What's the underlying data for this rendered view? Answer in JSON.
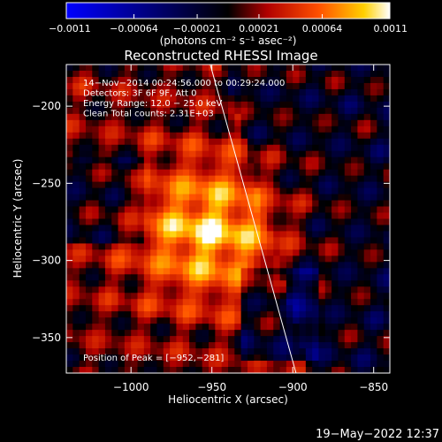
{
  "chart_data": {
    "type": "heatmap",
    "title": "Reconstructed RHESSI Image",
    "xlabel": "Heliocentric X (arcsec)",
    "ylabel": "Heliocentric Y (arcsec)",
    "xlim": [
      -1040,
      -840
    ],
    "ylim": [
      -373,
      -173
    ],
    "xticks": [
      -1000,
      -950,
      -900,
      -850
    ],
    "xtick_labels": [
      "−1000",
      "−950",
      "−900",
      "−850"
    ],
    "yticks": [
      -200,
      -250,
      -300,
      -350
    ],
    "ytick_labels": [
      "−200",
      "−250",
      "−300",
      "−350"
    ],
    "colorbar": {
      "min": -0.0011,
      "max": 0.0011,
      "ticks": [
        -0.0011,
        -0.00064,
        -0.00021,
        0.00021,
        0.00064,
        0.0011
      ],
      "tick_labels": [
        "−0.0011",
        "−0.00064",
        "−0.00021",
        "0.00021",
        "0.00064",
        "0.0011"
      ],
      "units_label": "(photons cm⁻² s⁻¹ asec⁻²)",
      "colors": [
        "#0000ff",
        "#000000",
        "#b00000",
        "#ff5000",
        "#ffd000",
        "#ffffff"
      ]
    },
    "annotations": [
      "14−Nov−2014 00:24:56.000 to 00:29:24.000",
      "Detectors: 3F 6F 9F, Att 0",
      "Energy Range: 12.0 − 25.0 keV",
      "Clean    Total counts: 2.31E+03"
    ],
    "peak_label": "Position of Peak = [−952,−281]",
    "peak": {
      "x": -952,
      "y": -281
    },
    "limb_line": {
      "x": [
        -951,
        -898
      ],
      "y": [
        -173,
        -373
      ]
    },
    "grid": false
  },
  "footer": {
    "datestamp": "19−May−2022 12:37"
  }
}
